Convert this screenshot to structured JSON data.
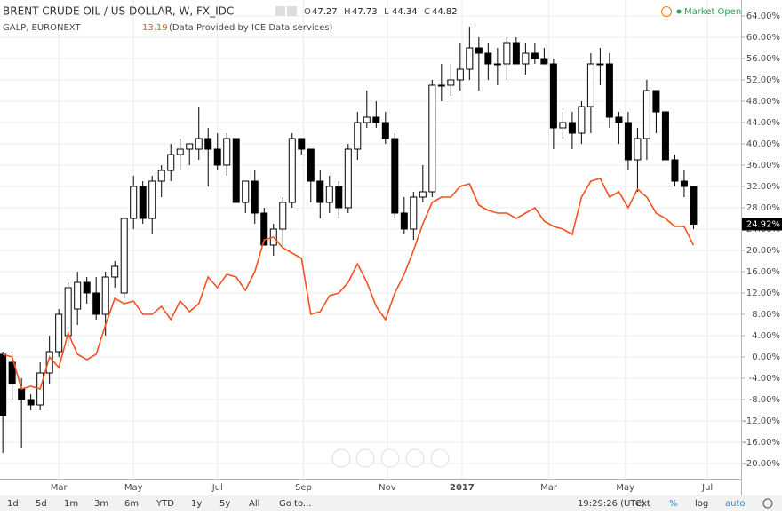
{
  "header": {
    "title": "BRENT CRUDE OIL / US DOLLAR, W, FX_IDC",
    "ohlc": [
      {
        "label": "O",
        "value": "47.27"
      },
      {
        "label": "H",
        "value": "47.73"
      },
      {
        "label": "L",
        "value": "44.34"
      },
      {
        "label": "C",
        "value": "44.82"
      }
    ],
    "compare_symbol": "GALP, EURONEXT",
    "compare_value": "13.19",
    "compare_note": "(Data Provided by ICE Data services)",
    "status": "Market Open"
  },
  "toolbar": {
    "ranges": [
      "1d",
      "5d",
      "1m",
      "3m",
      "6m",
      "YTD",
      "1y",
      "5y",
      "All",
      "Go to..."
    ],
    "time": "19:29:26 (UTC)",
    "options": [
      "ext",
      "%",
      "log",
      "auto"
    ]
  },
  "chart_data": {
    "type": "candlestick",
    "grid": true,
    "xlim": [
      -0.3,
      79.1
    ],
    "xticks": [
      {
        "value": 6,
        "label": "Mar"
      },
      {
        "value": 14,
        "label": "May"
      },
      {
        "value": 23,
        "label": "Jul"
      },
      {
        "value": 32.2,
        "label": "Sep"
      },
      {
        "value": 41.2,
        "label": "Nov"
      },
      {
        "value": 49.2,
        "label": "2017"
      },
      {
        "value": 58.5,
        "label": "Mar"
      },
      {
        "value": 66.7,
        "label": "May"
      },
      {
        "value": 75.5,
        "label": "Jul"
      }
    ],
    "ylim": [
      -23,
      67
    ],
    "yticks": [
      {
        "value": 64,
        "label": "64.00%"
      },
      {
        "value": 60,
        "label": "60.00%"
      },
      {
        "value": 56,
        "label": "56.00%"
      },
      {
        "value": 52,
        "label": "52.00%"
      },
      {
        "value": 48,
        "label": "48.00%"
      },
      {
        "value": 44,
        "label": "44.00%"
      },
      {
        "value": 40,
        "label": "40.00%"
      },
      {
        "value": 36,
        "label": "36.00%"
      },
      {
        "value": 32,
        "label": "32.00%"
      },
      {
        "value": 28,
        "label": "28.00%"
      },
      {
        "value": 24,
        "label": "24.00%"
      },
      {
        "value": 20,
        "label": "20.00%"
      },
      {
        "value": 16,
        "label": "16.00%"
      },
      {
        "value": 12,
        "label": "12.00%"
      },
      {
        "value": 8,
        "label": "8.00%"
      },
      {
        "value": 4,
        "label": "4.00%"
      },
      {
        "value": 0,
        "label": "0.00%"
      },
      {
        "value": -4,
        "label": "-4.00%"
      },
      {
        "value": -8,
        "label": "-8.00%"
      },
      {
        "value": -12,
        "label": "-12.00%"
      },
      {
        "value": -16,
        "label": "-16.00%"
      },
      {
        "value": -20,
        "label": "-20.00%"
      }
    ],
    "price_tag": {
      "value": 24.92,
      "label": "24.92%"
    },
    "candles": {
      "up_color": "#ffffff",
      "down_color": "#000000",
      "edge_color": "#000000",
      "open": [
        0.5,
        -1,
        -6,
        -8,
        -9,
        -3,
        1,
        4,
        9,
        14,
        12,
        8,
        15,
        12,
        26,
        32,
        26,
        33,
        35,
        38,
        39,
        39,
        41,
        39,
        36,
        41,
        29,
        33,
        27,
        21,
        24,
        29,
        41,
        39,
        33,
        29,
        32,
        28,
        39,
        44,
        45,
        44,
        41,
        27,
        24,
        30,
        31,
        51,
        51,
        52,
        54,
        58,
        57,
        55,
        55,
        59,
        55,
        57,
        56,
        55,
        43,
        44,
        42,
        47,
        55,
        55,
        45,
        44,
        37,
        41,
        50,
        46,
        37,
        33,
        32
      ],
      "high": [
        1,
        0.5,
        -4,
        -7,
        -1,
        4,
        9,
        14,
        16,
        15,
        15,
        16,
        18,
        26,
        34,
        33,
        34,
        36,
        40,
        41,
        40,
        47,
        43,
        42,
        42,
        41,
        33,
        35,
        28,
        25,
        30,
        42,
        41,
        39,
        35,
        34,
        33,
        40,
        46,
        50,
        48,
        46,
        42,
        30,
        31,
        36,
        52,
        55,
        55,
        59,
        62,
        60,
        59,
        58,
        60,
        60,
        59,
        59,
        58,
        56,
        46,
        46,
        48,
        57,
        58,
        57,
        46,
        46,
        43,
        52,
        50,
        46,
        38,
        35,
        32
      ],
      "low": [
        -18,
        -8,
        -17,
        -10,
        -10,
        -5,
        0,
        2,
        6,
        10,
        7,
        4,
        13,
        11,
        24,
        25,
        23,
        30,
        33,
        35,
        36,
        37,
        32,
        35,
        34,
        30,
        27,
        25,
        21,
        19,
        21,
        28,
        38,
        29,
        26,
        27,
        26,
        27,
        37,
        43,
        43,
        40,
        26,
        23,
        22,
        29,
        30,
        48,
        49,
        50,
        52,
        50,
        52,
        51,
        52,
        55,
        53,
        55,
        55,
        39,
        41,
        39,
        40,
        42,
        51,
        43,
        40,
        35,
        31,
        37,
        42,
        37,
        32,
        30,
        24
      ],
      "close": [
        -11,
        -5,
        -8,
        -9,
        -3,
        1,
        8,
        13,
        14,
        12,
        8,
        15,
        17,
        26,
        32,
        26,
        33,
        35,
        38,
        39,
        40,
        41,
        39,
        36,
        41,
        29,
        33,
        27,
        21,
        24,
        29,
        41,
        39,
        33,
        29,
        32,
        28,
        39,
        44,
        45,
        44,
        41,
        27,
        24,
        30,
        31,
        51,
        51,
        52,
        54,
        58,
        57,
        55,
        55,
        59,
        55,
        57,
        56,
        55,
        43,
        44,
        42,
        47,
        55,
        55,
        45,
        44,
        37,
        41,
        50,
        46,
        37,
        33,
        32,
        24.92
      ]
    },
    "series": [
      {
        "name": "GALP",
        "color": "#f4511e",
        "values": [
          0.5,
          0,
          -6,
          -5.5,
          -6,
          0,
          -2,
          4.5,
          0.5,
          -0.5,
          0.5,
          6,
          11,
          10,
          10.5,
          8,
          8,
          9.5,
          7,
          10.5,
          8.5,
          10,
          15,
          13,
          15.5,
          15,
          12.5,
          16,
          22,
          22.5,
          20.5,
          19.5,
          18.5,
          8,
          8.5,
          11.5,
          12,
          14,
          17.5,
          14,
          9.5,
          7,
          12,
          15.5,
          20,
          25,
          29,
          30,
          30,
          32,
          32.5,
          28.5,
          27.5,
          27,
          27,
          26,
          27,
          28,
          25.5,
          24.5,
          24,
          23,
          30,
          33,
          33.5,
          30,
          31,
          28,
          31.5,
          30,
          27,
          26,
          24.5,
          24.5,
          21
        ]
      }
    ]
  }
}
